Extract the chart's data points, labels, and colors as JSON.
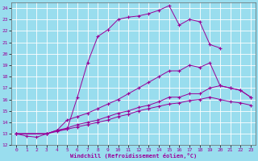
{
  "xlabel": "Windchill (Refroidissement éolien,°C)",
  "bg_color": "#99ddee",
  "line_color": "#990099",
  "grid_color": "#ffffff",
  "xlim": [
    -0.5,
    23.5
  ],
  "ylim": [
    12,
    24.5
  ],
  "xticks": [
    0,
    1,
    2,
    3,
    4,
    5,
    6,
    7,
    8,
    9,
    10,
    11,
    12,
    13,
    14,
    15,
    16,
    17,
    18,
    19,
    20,
    21,
    22,
    23
  ],
  "yticks": [
    12,
    13,
    14,
    15,
    16,
    17,
    18,
    19,
    20,
    21,
    22,
    23,
    24
  ],
  "line1_x": [
    0,
    1,
    2,
    3,
    4,
    5,
    6,
    7,
    8,
    9,
    10,
    11,
    12,
    13,
    14,
    15,
    16,
    17,
    18,
    19,
    20
  ],
  "line1_y": [
    13.0,
    12.8,
    12.7,
    13.0,
    13.3,
    13.4,
    16.2,
    19.2,
    21.5,
    22.1,
    23.0,
    23.2,
    23.3,
    23.5,
    23.8,
    24.2,
    22.5,
    23.0,
    22.8,
    20.8,
    20.5
  ],
  "line2_x": [
    0,
    3,
    4,
    5,
    6,
    7,
    8,
    9,
    10,
    11,
    12,
    13,
    14,
    15,
    16,
    17,
    18,
    19,
    20,
    21,
    22,
    23
  ],
  "line2_y": [
    13.0,
    13.0,
    13.3,
    14.2,
    14.5,
    14.8,
    15.2,
    15.6,
    16.0,
    16.5,
    17.0,
    17.5,
    18.0,
    18.5,
    18.5,
    19.0,
    18.8,
    19.2,
    17.2,
    17.0,
    16.8,
    16.2
  ],
  "line3_x": [
    0,
    3,
    4,
    5,
    6,
    7,
    8,
    9,
    10,
    11,
    12,
    13,
    14,
    15,
    16,
    17,
    18,
    19,
    20,
    21,
    22,
    23
  ],
  "line3_y": [
    13.0,
    13.0,
    13.3,
    13.5,
    13.8,
    14.0,
    14.2,
    14.5,
    14.8,
    15.0,
    15.3,
    15.5,
    15.8,
    16.2,
    16.2,
    16.5,
    16.5,
    17.0,
    17.2,
    17.0,
    16.8,
    16.2
  ],
  "line4_x": [
    0,
    3,
    4,
    5,
    6,
    7,
    8,
    9,
    10,
    11,
    12,
    13,
    14,
    15,
    16,
    17,
    18,
    19,
    20,
    21,
    22,
    23
  ],
  "line4_y": [
    13.0,
    13.0,
    13.2,
    13.4,
    13.6,
    13.8,
    14.0,
    14.2,
    14.5,
    14.7,
    15.0,
    15.2,
    15.4,
    15.6,
    15.7,
    15.9,
    16.0,
    16.2,
    16.0,
    15.8,
    15.7,
    15.5
  ]
}
